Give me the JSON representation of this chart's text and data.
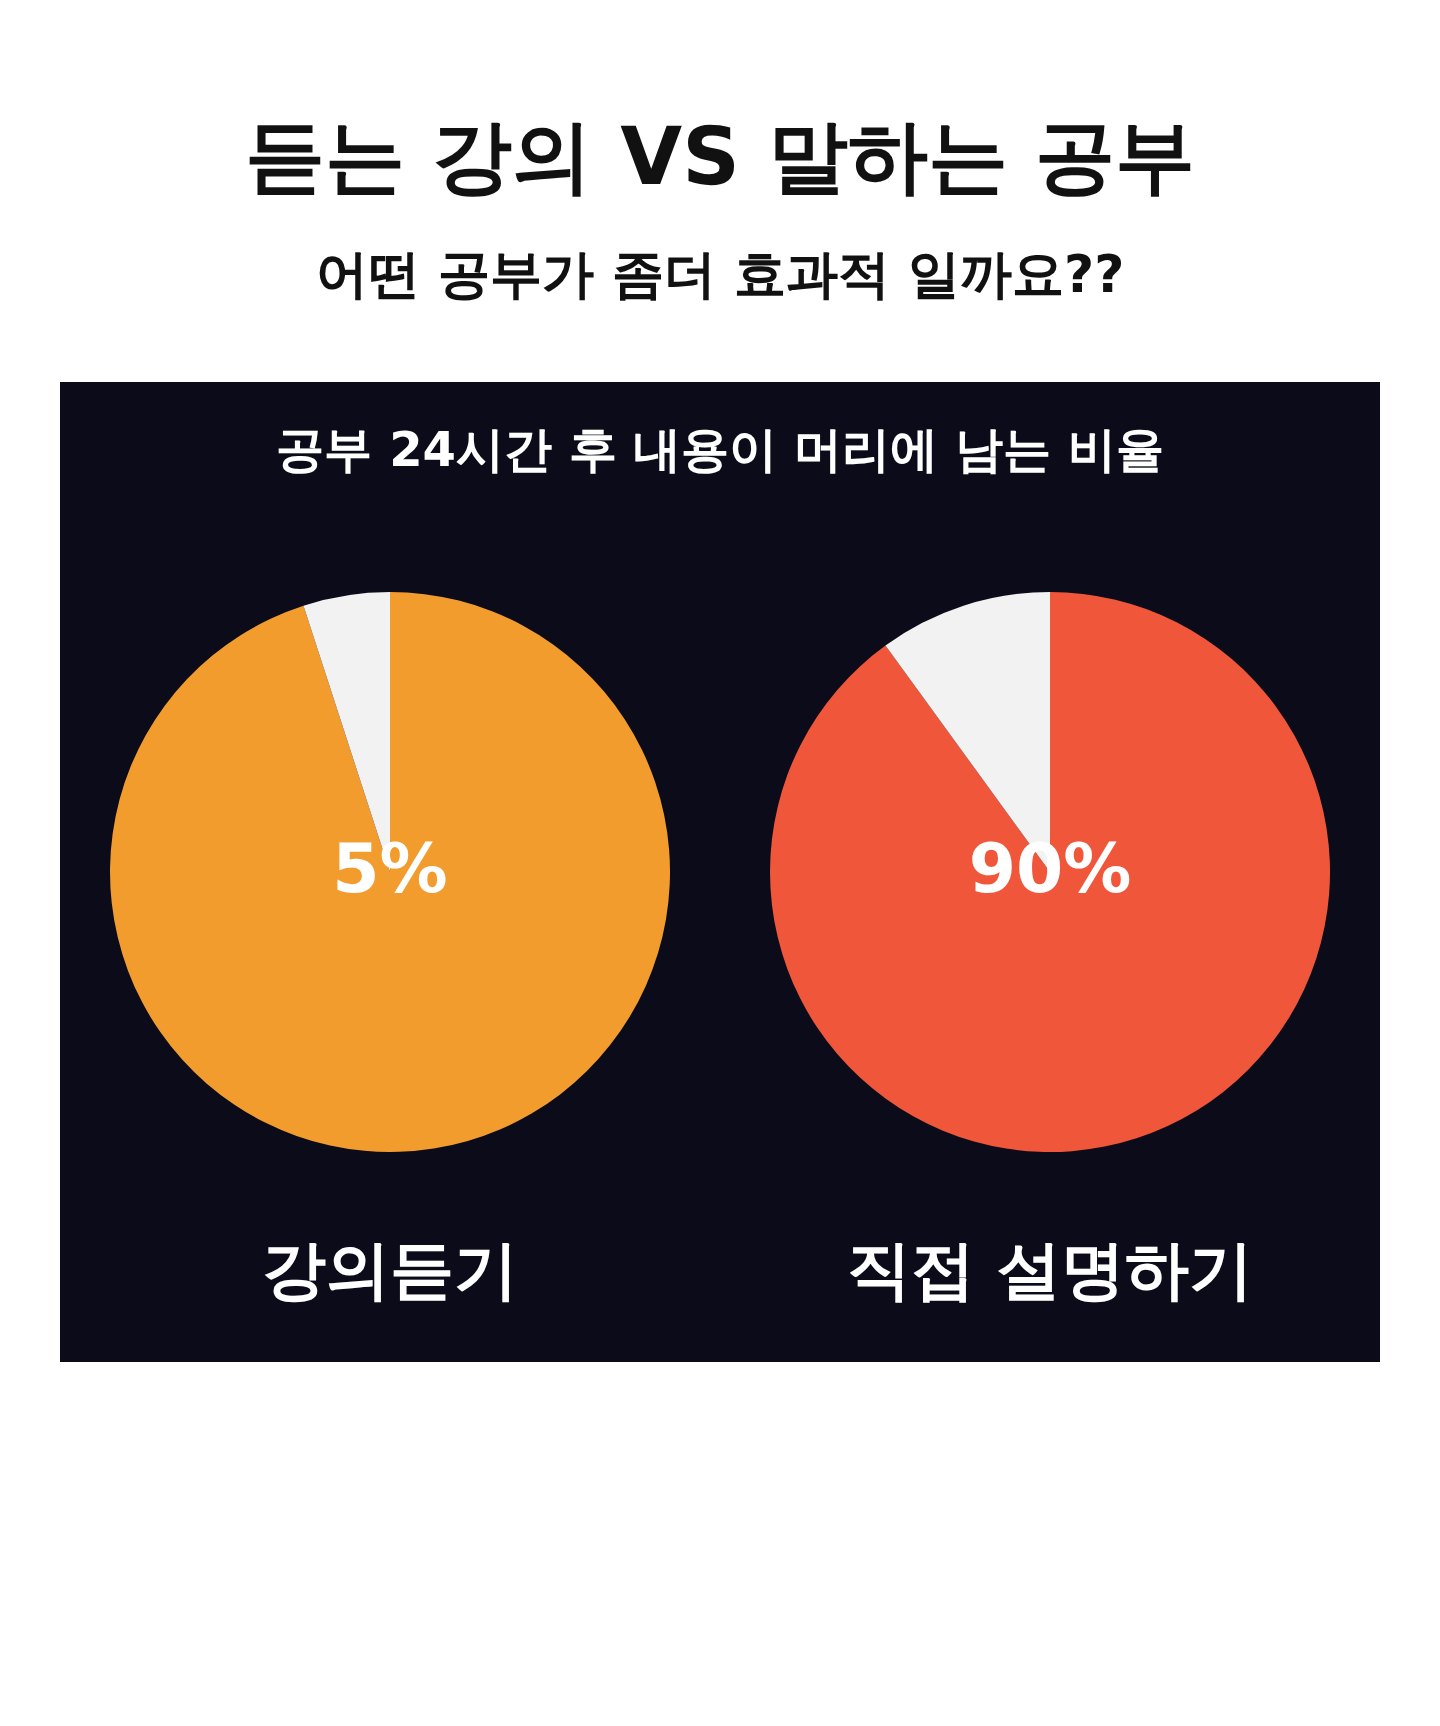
{
  "chart_data": [
    {
      "type": "pie",
      "title": "듣는 강의 VS 말하는 공부",
      "subtitle": "어떤 공부가 좀더 효과적 일까요??",
      "annotations": [
        "공부 24시간 후 내용이 머리에 남는 비율"
      ],
      "categories": [
        null,
        null
      ],
      "values": [
        95,
        5
      ],
      "colors": [
        "#f39c2e",
        "#f2f2f2"
      ],
      "value_labels": [
        null,
        "5%"
      ],
      "xlabel": "강의듣기"
    },
    {
      "type": "pie",
      "categories": [
        null,
        null
      ],
      "values": [
        90,
        10
      ],
      "colors": [
        "#f0573a",
        "#f2f2f2"
      ],
      "value_labels": [
        "90%",
        null
      ],
      "xlabel": "직접 설명하기"
    }
  ]
}
